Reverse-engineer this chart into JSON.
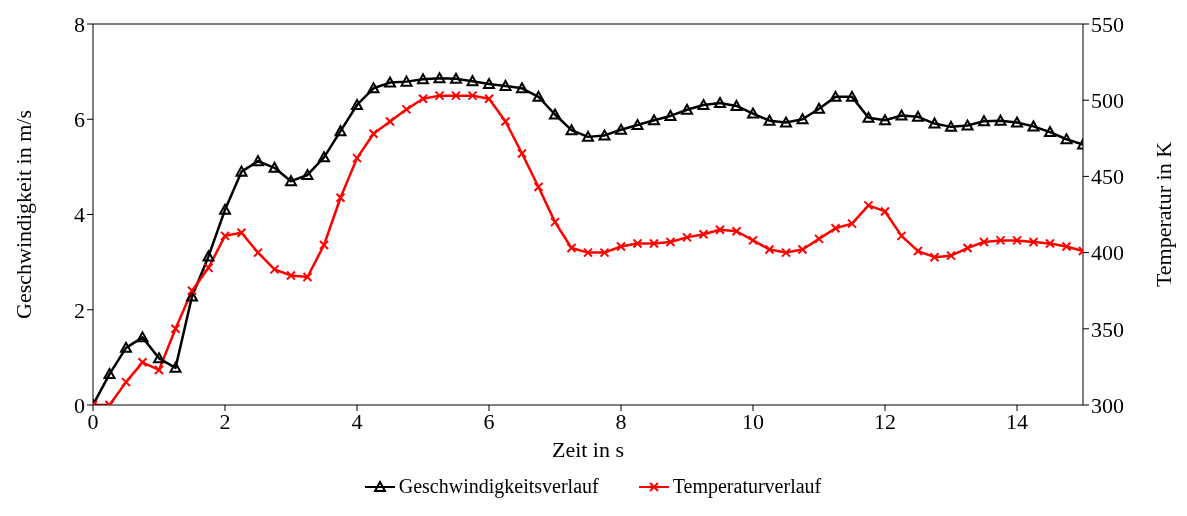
{
  "chart_data": {
    "type": "line",
    "xlabel": "Zeit in s",
    "ylabel": "Geschwindigkeit in m/s",
    "y2label": "Temperatur in K",
    "x": [
      0,
      0.25,
      0.5,
      0.75,
      1,
      1.25,
      1.5,
      1.75,
      2,
      2.25,
      2.5,
      2.75,
      3,
      3.25,
      3.5,
      3.75,
      4,
      4.25,
      4.5,
      4.75,
      5,
      5.25,
      5.5,
      5.75,
      6,
      6.25,
      6.5,
      6.75,
      7,
      7.25,
      7.5,
      7.75,
      8,
      8.25,
      8.5,
      8.75,
      9,
      9.25,
      9.5,
      9.75,
      10,
      10.25,
      10.5,
      10.75,
      11,
      11.25,
      11.5,
      11.75,
      12,
      12.25,
      12.5,
      12.75,
      13,
      13.25,
      13.5,
      13.75,
      14,
      14.25,
      14.5,
      14.75,
      15
    ],
    "series": [
      {
        "name": "Geschwindigkeitsverlauf",
        "color": "#000000",
        "marker": "triangle",
        "values": [
          0,
          0.65,
          1.2,
          1.42,
          0.98,
          0.78,
          2.28,
          3.12,
          4.1,
          4.9,
          5.12,
          4.98,
          4.7,
          4.83,
          5.2,
          5.75,
          6.3,
          6.65,
          6.77,
          6.79,
          6.84,
          6.86,
          6.85,
          6.8,
          6.74,
          6.7,
          6.65,
          6.47,
          6.1,
          5.77,
          5.63,
          5.66,
          5.78,
          5.88,
          5.98,
          6.07,
          6.2,
          6.3,
          6.34,
          6.28,
          6.12,
          5.97,
          5.93,
          6.0,
          6.22,
          6.47,
          6.47,
          6.03,
          5.98,
          6.08,
          6.05,
          5.91,
          5.84,
          5.87,
          5.96,
          5.97,
          5.93,
          5.85,
          5.73,
          5.58,
          5.47
        ]
      },
      {
        "name": "Temperaturverlauf",
        "color": "#ff0000",
        "marker": "cross",
        "axis": "y2",
        "values": [
          300,
          300,
          315,
          328,
          323,
          350,
          375,
          390,
          411,
          413,
          400,
          389,
          385,
          384,
          405,
          436,
          462,
          478,
          486,
          494,
          501,
          503,
          503,
          503,
          501,
          486,
          465,
          443,
          420,
          403,
          400,
          400,
          404,
          406,
          406,
          407,
          410,
          412,
          415,
          414,
          408,
          402,
          400,
          402,
          409,
          416,
          419,
          431,
          427,
          411,
          401,
          397,
          398,
          403,
          407,
          408,
          408,
          407,
          406,
          404,
          401
        ]
      }
    ],
    "xlim": [
      0,
      15
    ],
    "xticks": [
      0,
      2,
      4,
      6,
      8,
      10,
      12,
      14
    ],
    "ylim": [
      0,
      8
    ],
    "yticks": [
      0,
      2,
      4,
      6,
      8
    ],
    "y2lim": [
      300,
      550
    ],
    "y2ticks": [
      300,
      350,
      400,
      450,
      500,
      550
    ],
    "legend": "bottom",
    "grid": false,
    "line_style": "solid"
  }
}
